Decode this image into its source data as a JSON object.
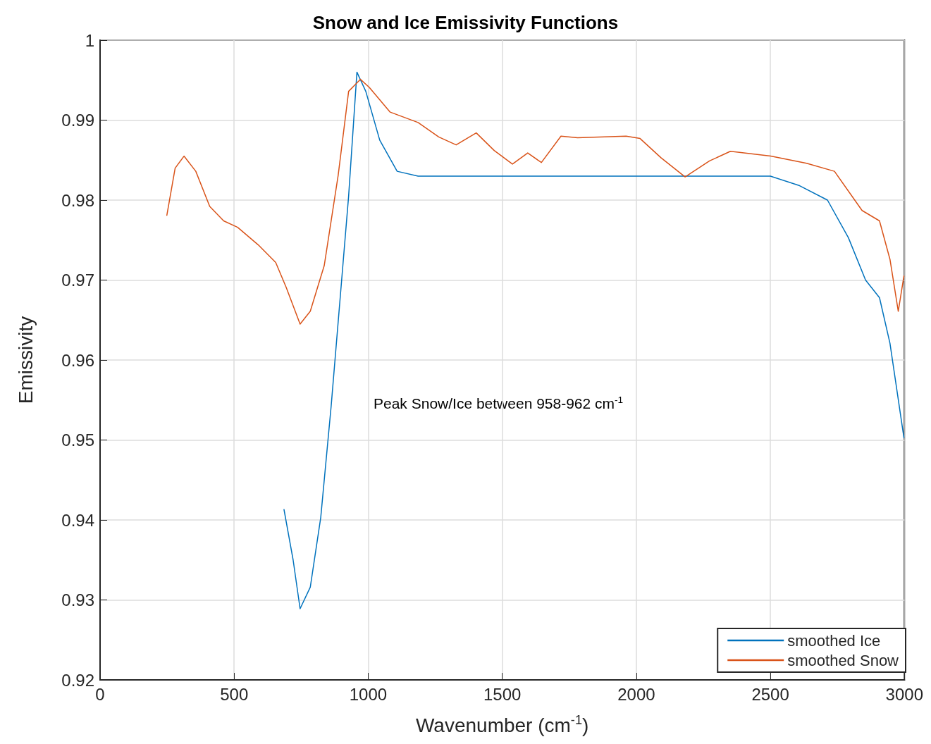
{
  "chart_data": {
    "type": "line",
    "title": "Snow and Ice Emissivity Functions",
    "xlabel": "Wavenumber (cm$^{-1}$)",
    "ylabel": "Emissivity",
    "annotations": [
      "Peak Snow/Ice between 958-962 cm$^{-1}$"
    ],
    "xlim": [
      0,
      3000
    ],
    "xticks": [
      0,
      500,
      1000,
      1500,
      2000,
      2500,
      3000
    ],
    "ylim": [
      0.92,
      1
    ],
    "yticks": [
      0.92,
      0.93,
      0.94,
      0.95,
      0.96,
      0.97,
      0.98,
      0.99,
      1
    ],
    "grid": true,
    "legend": "bottom right",
    "marker": "none",
    "line_style": "solid",
    "series": [
      {
        "name": "smoothed Ice",
        "color": "#0072bd",
        "x": [
          686,
          720,
          746,
          784,
          823,
          862,
          901,
          927,
          958,
          991,
          1043,
          1108,
          1186,
          1500,
          2000,
          2300,
          2500,
          2609,
          2713,
          2791,
          2855,
          2907,
          2946,
          2998
        ],
        "values": [
          0.9413,
          0.935,
          0.9289,
          0.9316,
          0.9403,
          0.9543,
          0.97,
          0.9805,
          0.996,
          0.9936,
          0.9875,
          0.9836,
          0.983,
          0.983,
          0.983,
          0.983,
          0.983,
          0.9818,
          0.98,
          0.9753,
          0.97,
          0.9678,
          0.9621,
          0.9503
        ]
      },
      {
        "name": "smoothed Snow",
        "color": "#d95319",
        "x": [
          249,
          280,
          313,
          357,
          409,
          461,
          513,
          590,
          655,
          694,
          746,
          784,
          836,
          888,
          927,
          971,
          1004,
          1082,
          1186,
          1263,
          1328,
          1403,
          1470,
          1538,
          1595,
          1646,
          1719,
          1781,
          1962,
          2014,
          2092,
          2182,
          2273,
          2351,
          2501,
          2635,
          2739,
          2842,
          2907,
          2946,
          2977,
          2998
        ],
        "values": [
          0.9781,
          0.984,
          0.9855,
          0.9836,
          0.9792,
          0.9774,
          0.9766,
          0.9744,
          0.9722,
          0.9691,
          0.9645,
          0.9661,
          0.9718,
          0.9831,
          0.9936,
          0.9951,
          0.9941,
          0.991,
          0.9897,
          0.9879,
          0.9869,
          0.9884,
          0.9862,
          0.9845,
          0.9859,
          0.9847,
          0.988,
          0.9878,
          0.988,
          0.9877,
          0.9853,
          0.9829,
          0.9849,
          0.9861,
          0.9855,
          0.9846,
          0.9836,
          0.9787,
          0.9774,
          0.9726,
          0.9661,
          0.9705
        ]
      }
    ]
  }
}
